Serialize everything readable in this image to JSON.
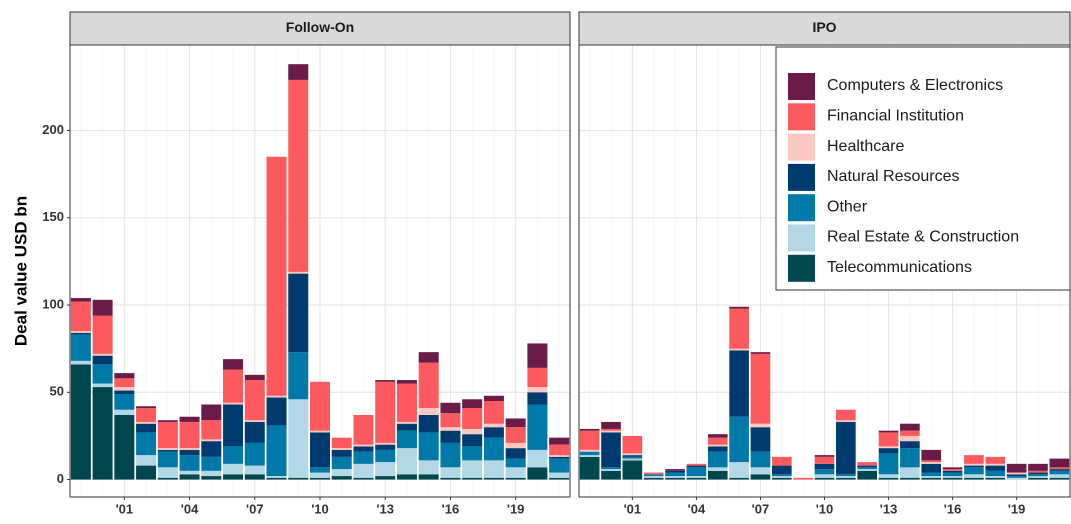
{
  "chart_data": {
    "type": "bar",
    "stacked": true,
    "facets": [
      "Follow-On",
      "IPO"
    ],
    "ylabel": "Deal value USD bn",
    "categories": [
      null,
      null,
      "'01",
      null,
      null,
      "'04",
      null,
      null,
      "'07",
      null,
      null,
      "'10",
      null,
      null,
      "'13",
      null,
      null,
      "'16",
      null,
      null,
      "'19",
      null,
      null
    ],
    "ylim": [
      -10,
      249
    ],
    "yticks": [
      0,
      50,
      100,
      150,
      200
    ],
    "grid": true,
    "legend": "top right",
    "series": [
      {
        "name": "Computers & Electronics",
        "color": "#6b1b47",
        "values": [
          [
            2,
            9,
            3,
            1,
            1,
            3,
            9,
            6,
            3,
            0,
            9,
            0,
            0,
            0,
            1,
            2,
            6,
            6,
            5,
            3,
            5,
            14,
            4
          ],
          [
            1,
            4,
            0,
            0,
            1,
            0,
            2,
            1,
            1,
            0,
            0,
            1,
            0,
            0,
            1,
            4,
            6,
            1,
            0,
            0,
            5,
            4,
            5
          ]
        ]
      },
      {
        "name": "Financial Institution",
        "color": "#fc5a5f",
        "values": [
          [
            17,
            22,
            5,
            8,
            15,
            15,
            11,
            19,
            23,
            137,
            110,
            28,
            6,
            17,
            35,
            22,
            26,
            8,
            12,
            13,
            9,
            11,
            6
          ],
          [
            11,
            1,
            10,
            1,
            0,
            1,
            4,
            23,
            40,
            5,
            1,
            4,
            6,
            2,
            8,
            3,
            1,
            1,
            5,
            4,
            0,
            1,
            1
          ]
        ]
      },
      {
        "name": "Healthcare",
        "color": "#f9c9c2",
        "values": [
          [
            1,
            1,
            2,
            1,
            1,
            1,
            1,
            1,
            1,
            1,
            1,
            1,
            1,
            1,
            1,
            1,
            4,
            2,
            3,
            2,
            3,
            3,
            1
          ],
          [
            1,
            1,
            1,
            0,
            0,
            0,
            1,
            1,
            2,
            0,
            0,
            0,
            1,
            0,
            1,
            3,
            1,
            0,
            1,
            1,
            1,
            0,
            0
          ]
        ]
      },
      {
        "name": "Natural Resources",
        "color": "#003b6f",
        "values": [
          [
            1,
            5,
            2,
            5,
            1,
            3,
            9,
            24,
            12,
            16,
            45,
            20,
            4,
            3,
            3,
            4,
            10,
            7,
            7,
            6,
            6,
            7,
            1
          ],
          [
            0,
            20,
            1,
            0,
            1,
            1,
            3,
            38,
            14,
            5,
            0,
            3,
            30,
            1,
            3,
            4,
            5,
            1,
            1,
            3,
            1,
            1,
            1
          ]
        ]
      },
      {
        "name": "Other",
        "color": "#0079a8",
        "values": [
          [
            15,
            11,
            9,
            13,
            9,
            9,
            8,
            10,
            13,
            29,
            27,
            3,
            7,
            7,
            7,
            10,
            16,
            14,
            8,
            13,
            5,
            26,
            8
          ],
          [
            2,
            1,
            1,
            1,
            2,
            5,
            9,
            26,
            9,
            1,
            0,
            3,
            1,
            1,
            12,
            11,
            2,
            2,
            4,
            3,
            1,
            1,
            2
          ]
        ]
      },
      {
        "name": "Real Estate & Construction",
        "color": "#b3d7e6",
        "values": [
          [
            2,
            2,
            3,
            6,
            6,
            2,
            3,
            6,
            5,
            1,
            45,
            3,
            4,
            8,
            8,
            15,
            8,
            6,
            10,
            10,
            6,
            10,
            3
          ],
          [
            1,
            1,
            1,
            1,
            1,
            1,
            2,
            9,
            4,
            1,
            0,
            2,
            1,
            1,
            2,
            6,
            1,
            1,
            2,
            1,
            1,
            1,
            2
          ]
        ]
      },
      {
        "name": "Telecommunications",
        "color": "#00474f",
        "values": [
          [
            66,
            53,
            37,
            8,
            1,
            3,
            2,
            3,
            3,
            1,
            1,
            1,
            2,
            1,
            2,
            3,
            3,
            1,
            1,
            1,
            1,
            7,
            1
          ],
          [
            13,
            5,
            11,
            1,
            1,
            1,
            5,
            1,
            3,
            1,
            0,
            1,
            1,
            5,
            1,
            1,
            1,
            1,
            1,
            1,
            0,
            1,
            1
          ]
        ]
      }
    ]
  }
}
